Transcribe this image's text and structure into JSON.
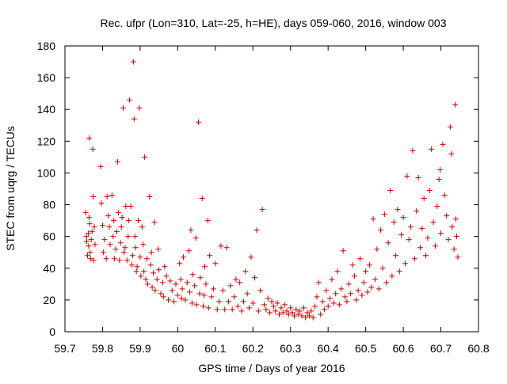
{
  "chart_data": {
    "type": "scatter",
    "title": "Rec. ufpr (Lon=310, Lat=-25, h=HE), days 059-060, 2016, window 003",
    "xlabel": "GPS time / Days of year 2016",
    "ylabel": "STEC from uqrg / TECUs",
    "xlim": [
      59.7,
      60.8
    ],
    "ylim": [
      0,
      180
    ],
    "xticks": [
      "59.7",
      "59.8",
      "59.9",
      "60",
      "60.1",
      "60.2",
      "60.3",
      "60.4",
      "60.5",
      "60.6",
      "60.7",
      "60.8"
    ],
    "yticks": [
      "0",
      "20",
      "40",
      "60",
      "80",
      "100",
      "120",
      "140",
      "160",
      "180"
    ],
    "grid": false,
    "marker": "+",
    "color": "#cc0000",
    "series": [
      {
        "name": "",
        "points": [
          [
            59.755,
            75
          ],
          [
            59.757,
            60
          ],
          [
            59.758,
            57
          ],
          [
            59.76,
            48
          ],
          [
            59.762,
            62
          ],
          [
            59.763,
            54
          ],
          [
            59.764,
            72
          ],
          [
            59.765,
            122
          ],
          [
            59.766,
            68
          ],
          [
            59.767,
            50
          ],
          [
            59.768,
            46
          ],
          [
            59.77,
            58
          ],
          [
            59.772,
            63
          ],
          [
            59.774,
            115
          ],
          [
            59.775,
            85
          ],
          [
            59.776,
            45
          ],
          [
            59.778,
            66
          ],
          [
            59.78,
            55
          ],
          [
            59.795,
            104
          ],
          [
            59.797,
            81
          ],
          [
            59.8,
            67
          ],
          [
            59.802,
            50
          ],
          [
            59.805,
            58
          ],
          [
            59.81,
            46
          ],
          [
            59.812,
            85
          ],
          [
            59.815,
            73
          ],
          [
            59.818,
            66
          ],
          [
            59.82,
            55
          ],
          [
            59.825,
            86
          ],
          [
            59.828,
            60
          ],
          [
            59.83,
            70
          ],
          [
            59.832,
            46
          ],
          [
            59.835,
            52
          ],
          [
            59.838,
            63
          ],
          [
            59.84,
            107
          ],
          [
            59.842,
            75
          ],
          [
            59.845,
            45
          ],
          [
            59.848,
            56
          ],
          [
            59.85,
            66
          ],
          [
            59.852,
            72
          ],
          [
            59.855,
            141
          ],
          [
            59.857,
            50
          ],
          [
            59.86,
            53
          ],
          [
            59.862,
            79
          ],
          [
            59.865,
            45
          ],
          [
            59.868,
            60
          ],
          [
            59.87,
            70
          ],
          [
            59.872,
            146
          ],
          [
            59.875,
            79
          ],
          [
            59.878,
            42
          ],
          [
            59.88,
            48
          ],
          [
            59.882,
            170
          ],
          [
            59.884,
            134
          ],
          [
            59.886,
            60
          ],
          [
            59.888,
            53
          ],
          [
            59.89,
            38
          ],
          [
            59.892,
            41
          ],
          [
            59.895,
            70
          ],
          [
            59.898,
            141
          ],
          [
            59.9,
            47
          ],
          [
            59.902,
            35
          ],
          [
            59.905,
            66
          ],
          [
            59.908,
            55
          ],
          [
            59.91,
            38
          ],
          [
            59.912,
            110
          ],
          [
            59.915,
            33
          ],
          [
            59.918,
            46
          ],
          [
            59.92,
            30
          ],
          [
            59.925,
            85
          ],
          [
            59.928,
            42
          ],
          [
            59.93,
            50
          ],
          [
            59.932,
            28
          ],
          [
            59.935,
            37
          ],
          [
            59.938,
            69
          ],
          [
            59.94,
            26
          ],
          [
            59.945,
            33
          ],
          [
            59.948,
            52
          ],
          [
            59.95,
            39
          ],
          [
            59.955,
            24
          ],
          [
            59.96,
            31
          ],
          [
            59.962,
            22
          ],
          [
            59.965,
            41
          ],
          [
            59.97,
            35
          ],
          [
            59.975,
            20
          ],
          [
            59.98,
            32
          ],
          [
            59.985,
            26
          ],
          [
            59.99,
            19
          ],
          [
            59.995,
            30
          ],
          [
            60.0,
            23
          ],
          [
            60.005,
            43
          ],
          [
            60.008,
            33
          ],
          [
            60.01,
            21
          ],
          [
            60.012,
            27
          ],
          [
            60.015,
            47
          ],
          [
            60.02,
            20
          ],
          [
            60.025,
            31
          ],
          [
            60.03,
            51
          ],
          [
            60.032,
            25
          ],
          [
            60.035,
            64
          ],
          [
            60.038,
            18
          ],
          [
            60.04,
            36
          ],
          [
            60.045,
            29
          ],
          [
            60.048,
            59
          ],
          [
            60.05,
            17
          ],
          [
            60.055,
            132
          ],
          [
            60.058,
            24
          ],
          [
            60.06,
            34
          ],
          [
            60.065,
            84
          ],
          [
            60.068,
            16
          ],
          [
            60.07,
            23
          ],
          [
            60.072,
            41
          ],
          [
            60.075,
            30
          ],
          [
            60.08,
            70
          ],
          [
            60.082,
            15
          ],
          [
            60.085,
            48
          ],
          [
            60.09,
            22
          ],
          [
            60.095,
            27
          ],
          [
            60.1,
            43
          ],
          [
            60.105,
            14
          ],
          [
            60.11,
            19
          ],
          [
            60.115,
            54
          ],
          [
            60.12,
            26
          ],
          [
            60.125,
            14
          ],
          [
            60.13,
            53
          ],
          [
            60.135,
            19
          ],
          [
            60.14,
            29
          ],
          [
            60.145,
            14
          ],
          [
            60.15,
            22
          ],
          [
            60.155,
            33
          ],
          [
            60.16,
            16
          ],
          [
            60.165,
            31
          ],
          [
            60.17,
            13
          ],
          [
            60.175,
            19
          ],
          [
            60.18,
            38
          ],
          [
            60.185,
            24
          ],
          [
            60.19,
            15
          ],
          [
            60.195,
            47
          ],
          [
            60.2,
            18
          ],
          [
            60.205,
            34
          ],
          [
            60.21,
            64
          ],
          [
            60.215,
            13
          ],
          [
            60.22,
            26
          ],
          [
            60.225,
            77
          ],
          [
            60.23,
            17
          ],
          [
            60.235,
            14
          ],
          [
            60.24,
            21
          ],
          [
            60.245,
            12
          ],
          [
            60.25,
            19
          ],
          [
            60.255,
            16
          ],
          [
            60.26,
            13
          ],
          [
            60.265,
            18
          ],
          [
            60.27,
            11
          ],
          [
            60.275,
            15
          ],
          [
            60.28,
            12
          ],
          [
            60.285,
            17
          ],
          [
            60.29,
            13
          ],
          [
            60.295,
            11
          ],
          [
            60.3,
            15
          ],
          [
            60.305,
            12
          ],
          [
            60.31,
            10
          ],
          [
            60.315,
            14
          ],
          [
            60.32,
            11
          ],
          [
            60.325,
            13
          ],
          [
            60.33,
            10
          ],
          [
            60.335,
            15
          ],
          [
            60.34,
            9
          ],
          [
            60.345,
            12
          ],
          [
            60.35,
            10
          ],
          [
            60.355,
            13
          ],
          [
            60.36,
            9
          ],
          [
            60.365,
            16
          ],
          [
            60.37,
            22
          ],
          [
            60.375,
            31
          ],
          [
            60.38,
            11
          ],
          [
            60.385,
            19
          ],
          [
            60.39,
            14
          ],
          [
            60.395,
            26
          ],
          [
            60.4,
            16
          ],
          [
            60.405,
            21
          ],
          [
            60.41,
            33
          ],
          [
            60.415,
            18
          ],
          [
            60.42,
            24
          ],
          [
            60.425,
            38
          ],
          [
            60.43,
            17
          ],
          [
            60.435,
            27
          ],
          [
            60.44,
            51
          ],
          [
            60.445,
            22
          ],
          [
            60.45,
            19
          ],
          [
            60.455,
            30
          ],
          [
            60.46,
            24
          ],
          [
            60.465,
            42
          ],
          [
            60.47,
            35
          ],
          [
            60.475,
            20
          ],
          [
            60.48,
            26
          ],
          [
            60.485,
            46
          ],
          [
            60.49,
            23
          ],
          [
            60.495,
            31
          ],
          [
            60.5,
            38
          ],
          [
            60.505,
            25
          ],
          [
            60.51,
            42
          ],
          [
            60.515,
            28
          ],
          [
            60.52,
            71
          ],
          [
            60.525,
            33
          ],
          [
            60.53,
            52
          ],
          [
            60.535,
            27
          ],
          [
            60.54,
            64
          ],
          [
            60.545,
            40
          ],
          [
            60.55,
            74
          ],
          [
            60.555,
            31
          ],
          [
            60.56,
            56
          ],
          [
            60.565,
            89
          ],
          [
            60.57,
            35
          ],
          [
            60.575,
            69
          ],
          [
            60.58,
            48
          ],
          [
            60.585,
            77
          ],
          [
            60.59,
            38
          ],
          [
            60.595,
            61
          ],
          [
            60.6,
            72
          ],
          [
            60.605,
            43
          ],
          [
            60.61,
            98
          ],
          [
            60.615,
            58
          ],
          [
            60.62,
            66
          ],
          [
            60.625,
            114
          ],
          [
            60.63,
            46
          ],
          [
            60.635,
            76
          ],
          [
            60.64,
            97
          ],
          [
            60.645,
            53
          ],
          [
            60.65,
            65
          ],
          [
            60.655,
            84
          ],
          [
            60.66,
            48
          ],
          [
            60.665,
            59
          ],
          [
            60.67,
            89
          ],
          [
            60.675,
            115
          ],
          [
            60.68,
            69
          ],
          [
            60.685,
            54
          ],
          [
            60.69,
            79
          ],
          [
            60.695,
            96
          ],
          [
            60.698,
            102
          ],
          [
            60.7,
            62
          ],
          [
            60.705,
            118
          ],
          [
            60.71,
            86
          ],
          [
            60.715,
            73
          ],
          [
            60.72,
            58
          ],
          [
            60.725,
            129
          ],
          [
            60.728,
            112
          ],
          [
            60.73,
            66
          ],
          [
            60.735,
            52
          ],
          [
            60.738,
            143
          ],
          [
            60.74,
            71
          ],
          [
            60.742,
            60
          ],
          [
            60.745,
            47
          ]
        ]
      }
    ]
  }
}
